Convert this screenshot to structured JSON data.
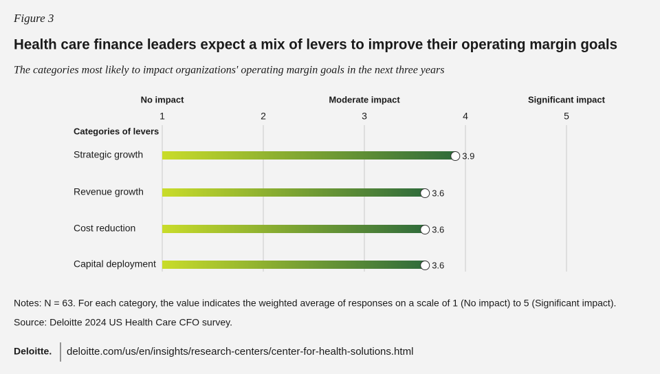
{
  "figure_label": "Figure 3",
  "chart_data": {
    "type": "bar",
    "orientation": "horizontal",
    "title": "Health care finance leaders expect a mix of levers to improve their operating margin goals",
    "subtitle": "The categories most likely to impact organizations' operating margin goals in the next three years",
    "scale_labels": [
      "No impact",
      "Moderate impact",
      "Significant impact"
    ],
    "category_axis_label": "Categories of levers",
    "categories": [
      "Strategic growth",
      "Revenue growth",
      "Cost reduction",
      "Capital deployment"
    ],
    "values": [
      3.9,
      3.6,
      3.6,
      3.6
    ],
    "colors": [
      "#c9dc2a",
      "#2f6b3b"
    ],
    "xlim": [
      1,
      5
    ],
    "xticks": [
      1,
      2,
      3,
      4,
      5
    ],
    "grid": true
  },
  "notes": "Notes: N = 63. For each category, the value indicates the weighted average of responses on a scale of 1 (No impact) to 5 (Significant impact).",
  "source": "Source: Deloitte 2024 US Health Care CFO survey.",
  "footer": {
    "brand": "Deloitte.",
    "url": "deloitte.com/us/en/insights/research-centers/center-for-health-solutions.html"
  }
}
